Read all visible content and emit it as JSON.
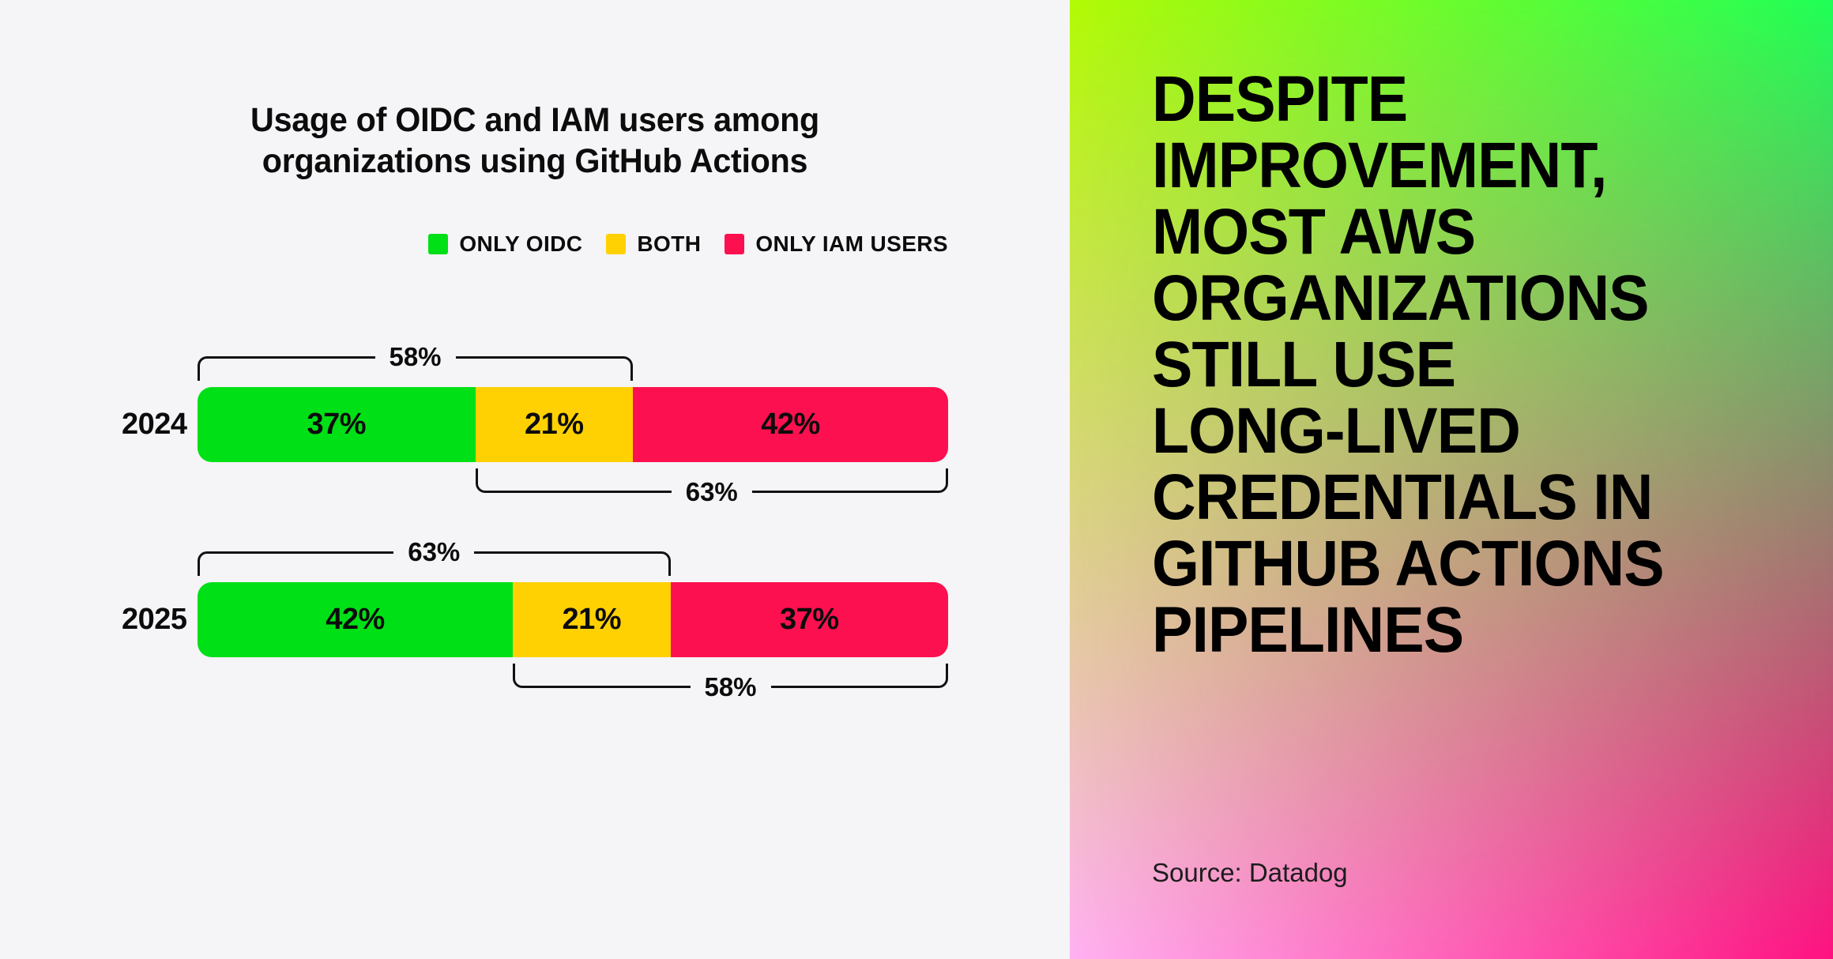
{
  "colors": {
    "panel_background": "#f5f4f6",
    "text": "#0c0c0c",
    "green": "#00e016",
    "yellow": "#ffd102",
    "red": "#fd104f"
  },
  "chart": {
    "title_lines": [
      "Usage of OIDC and IAM users among",
      "organizations using GitHub Actions"
    ],
    "legend": [
      {
        "label": "ONLY OIDC",
        "color": "#00e016"
      },
      {
        "label": "BOTH",
        "color": "#ffd102"
      },
      {
        "label": "ONLY IAM USERS",
        "color": "#fd104f"
      }
    ],
    "rows": [
      {
        "year": "2024",
        "segments": [
          {
            "name": "ONLY OIDC",
            "label": "37%",
            "value": 37,
            "color": "#00e016"
          },
          {
            "name": "BOTH",
            "label": "21%",
            "value": 21,
            "color": "#ffd102"
          },
          {
            "name": "ONLY IAM USERS",
            "label": "42%",
            "value": 42,
            "color": "#fd104f"
          }
        ],
        "bracket_top": {
          "label": "58%",
          "left": 0,
          "width": 58
        },
        "bracket_bottom": {
          "label": "63%",
          "left": 37,
          "width": 63
        }
      },
      {
        "year": "2025",
        "segments": [
          {
            "name": "ONLY OIDC",
            "label": "42%",
            "value": 42,
            "color": "#00e016"
          },
          {
            "name": "BOTH",
            "label": "21%",
            "value": 21,
            "color": "#ffd102"
          },
          {
            "name": "ONLY IAM USERS",
            "label": "37%",
            "value": 37,
            "color": "#fd104f"
          }
        ],
        "bracket_top": {
          "label": "63%",
          "left": 0,
          "width": 63
        },
        "bracket_bottom": {
          "label": "58%",
          "left": 42,
          "width": 58
        }
      }
    ]
  },
  "chart_data": {
    "type": "bar",
    "orientation": "horizontal",
    "stacked": true,
    "title": "Usage of OIDC and IAM users among organizations using GitHub Actions",
    "categories": [
      "2024",
      "2025"
    ],
    "series": [
      {
        "name": "ONLY OIDC",
        "color": "#00e016",
        "values": [
          37,
          42
        ]
      },
      {
        "name": "BOTH",
        "color": "#ffd102",
        "values": [
          21,
          21
        ]
      },
      {
        "name": "ONLY IAM USERS",
        "color": "#fd104f",
        "values": [
          42,
          37
        ]
      }
    ],
    "unit": "%",
    "xlim": [
      0,
      100
    ],
    "grid": false,
    "legend_position": "top-right",
    "bracket_annotations": [
      {
        "category": "2024",
        "span": "ONLY OIDC + BOTH",
        "value": 58,
        "label": "58%",
        "position": "above"
      },
      {
        "category": "2024",
        "span": "BOTH + ONLY IAM USERS",
        "value": 63,
        "label": "63%",
        "position": "below"
      },
      {
        "category": "2025",
        "span": "ONLY OIDC + BOTH",
        "value": 63,
        "label": "63%",
        "position": "above"
      },
      {
        "category": "2025",
        "span": "BOTH + ONLY IAM USERS",
        "value": 58,
        "label": "58%",
        "position": "below"
      }
    ]
  },
  "poster": {
    "headline_lines": [
      "DESPITE",
      "IMPROVEMENT,",
      "MOST AWS",
      "ORGANIZATIONS",
      "STILL USE",
      "LONG-LIVED",
      "CREDENTIALS IN",
      "GITHUB ACTIONS",
      "PIPELINES"
    ],
    "source": "Source: Datadog",
    "gradient": {
      "top_left": "#b3fa05",
      "top_right": "#1fff57",
      "bottom_left": "#ffb2f2",
      "bottom_right": "#ff1180"
    }
  }
}
